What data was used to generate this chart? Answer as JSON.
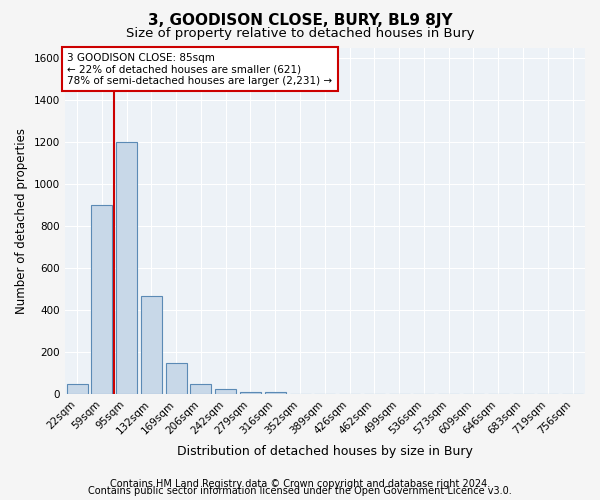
{
  "title": "3, GOODISON CLOSE, BURY, BL9 8JY",
  "subtitle": "Size of property relative to detached houses in Bury",
  "xlabel": "Distribution of detached houses by size in Bury",
  "ylabel": "Number of detached properties",
  "bar_color": "#c8d8e8",
  "bar_edge_color": "#5b8ab5",
  "categories": [
    "22sqm",
    "59sqm",
    "95sqm",
    "132sqm",
    "169sqm",
    "206sqm",
    "242sqm",
    "279sqm",
    "316sqm",
    "352sqm",
    "389sqm",
    "426sqm",
    "462sqm",
    "499sqm",
    "536sqm",
    "573sqm",
    "609sqm",
    "646sqm",
    "683sqm",
    "719sqm",
    "756sqm"
  ],
  "values": [
    50,
    900,
    1200,
    470,
    150,
    50,
    25,
    10,
    10,
    2,
    0,
    0,
    0,
    0,
    0,
    0,
    0,
    0,
    0,
    0,
    0
  ],
  "ylim": [
    0,
    1650
  ],
  "yticks": [
    0,
    200,
    400,
    600,
    800,
    1000,
    1200,
    1400,
    1600
  ],
  "red_line_x": 1.5,
  "annotation_text": "3 GOODISON CLOSE: 85sqm\n← 22% of detached houses are smaller (621)\n78% of semi-detached houses are larger (2,231) →",
  "annotation_box_color": "#ffffff",
  "annotation_border_color": "#cc0000",
  "footer_line1": "Contains HM Land Registry data © Crown copyright and database right 2024.",
  "footer_line2": "Contains public sector information licensed under the Open Government Licence v3.0.",
  "background_color": "#edf2f7",
  "grid_color": "#ffffff",
  "title_fontsize": 11,
  "subtitle_fontsize": 9.5,
  "tick_fontsize": 7.5,
  "footer_fontsize": 7,
  "ylabel_fontsize": 8.5,
  "xlabel_fontsize": 9
}
